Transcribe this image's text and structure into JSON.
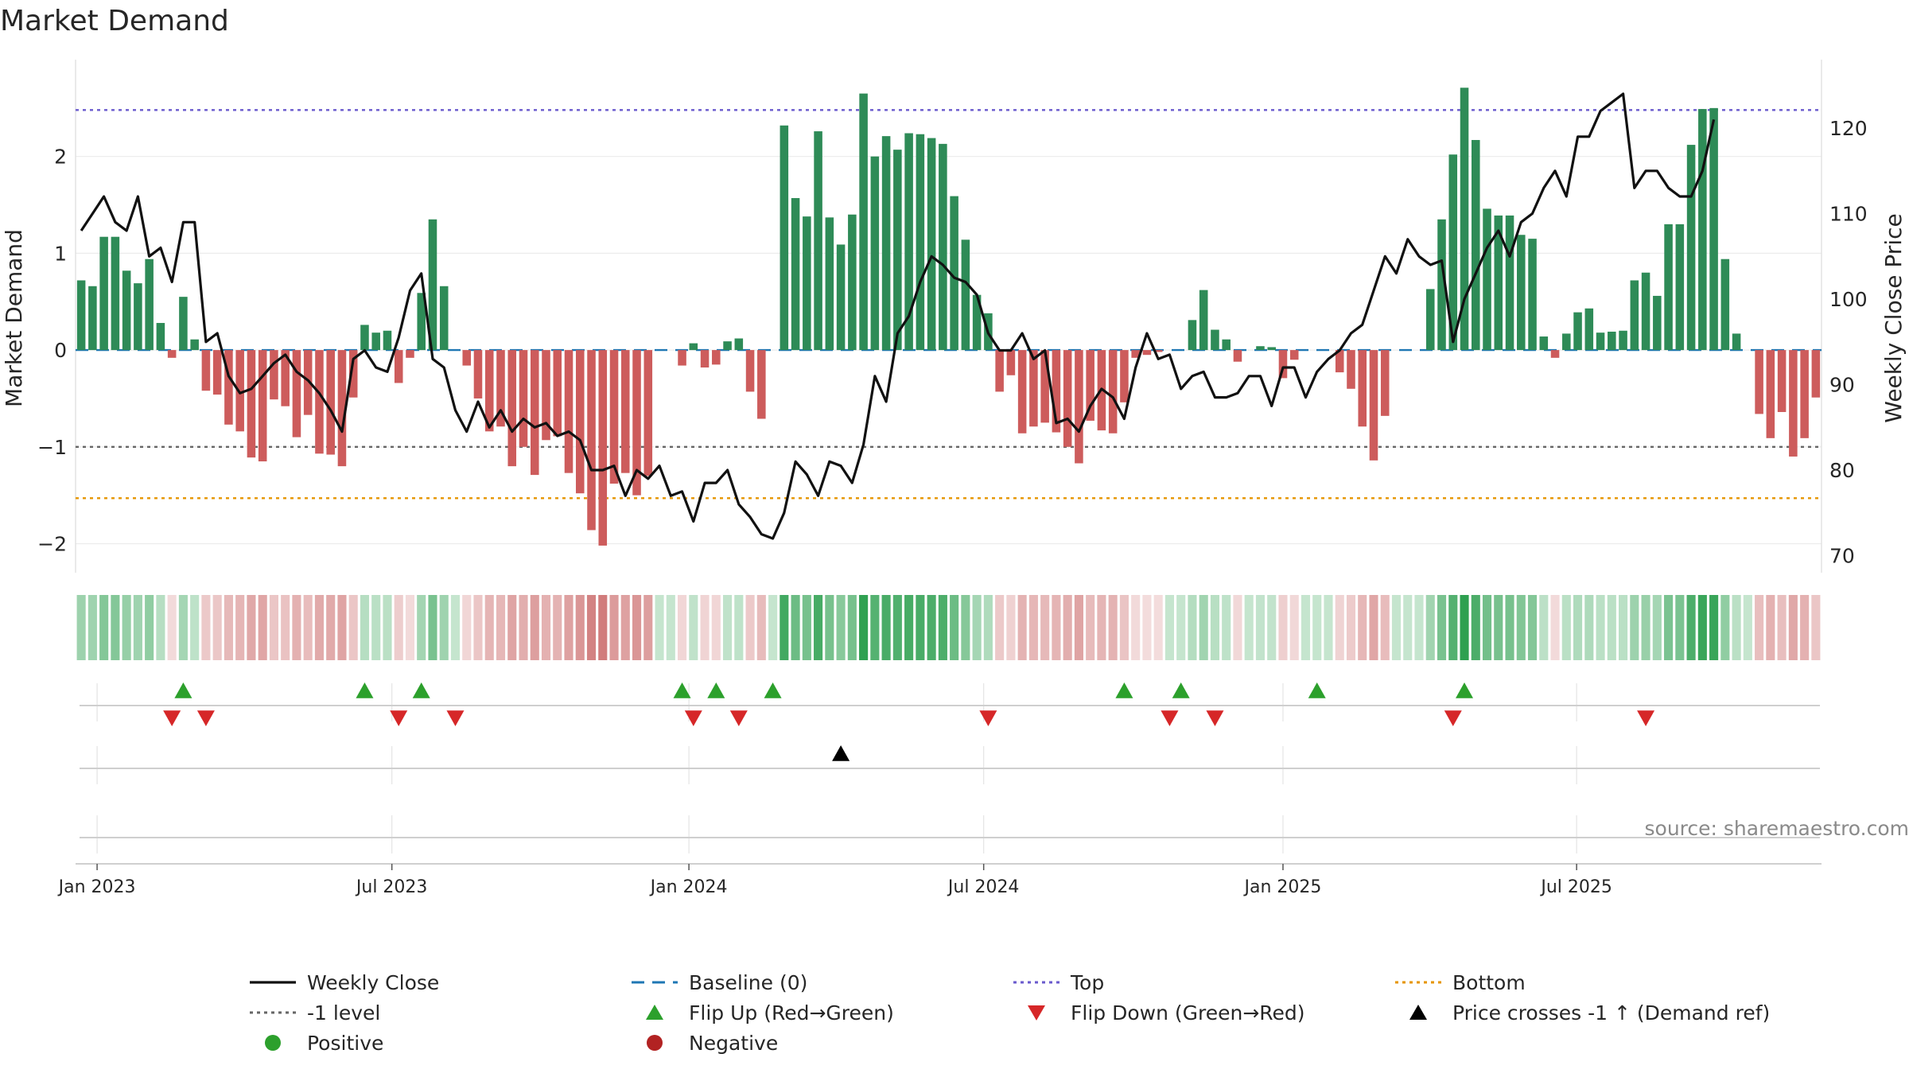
{
  "chart_data": {
    "type": "bar",
    "title": "Market Demand",
    "ylabel": "Market Demand",
    "y2label": "Weekly Close Price",
    "ylim": [
      -2.3,
      3.0
    ],
    "y2lim": [
      68,
      128
    ],
    "yticks": [
      -2,
      -1,
      0,
      1,
      2
    ],
    "y2ticks": [
      70,
      80,
      90,
      100,
      110,
      120
    ],
    "x_start": "2023-01-06",
    "x_end": "2025-09-26",
    "x_tick_labels": [
      "Jan 2023",
      "Jul 2023",
      "Jan 2024",
      "Jul 2024",
      "Jan 2025",
      "Jul 2025"
    ],
    "x_tick_indices": [
      1.4,
      27.4,
      53.6,
      79.6,
      106.0,
      131.9
    ],
    "reference_lines": {
      "top": 2.48,
      "minus_one": -1.0,
      "bottom": -1.53,
      "baseline": 0
    },
    "series": [
      {
        "name": "Market Demand",
        "values": [
          0.72,
          0.66,
          1.17,
          1.17,
          0.82,
          0.69,
          0.94,
          0.28,
          -0.08,
          0.55,
          0.11,
          -0.42,
          -0.46,
          -0.77,
          -0.84,
          -1.11,
          -1.15,
          -0.51,
          -0.58,
          -0.9,
          -0.67,
          -1.07,
          -1.08,
          -1.2,
          -0.49,
          0.26,
          0.18,
          0.2,
          -0.34,
          -0.08,
          0.59,
          1.35,
          0.66,
          0,
          -0.16,
          -0.5,
          -0.84,
          -0.79,
          -1.2,
          -1.0,
          -1.29,
          -0.93,
          -0.89,
          -1.27,
          -1.48,
          -1.86,
          -2.02,
          -1.38,
          -1.27,
          -1.5,
          -1.3,
          0,
          0,
          -0.16,
          0.07,
          -0.18,
          -0.15,
          0.09,
          0.12,
          -0.43,
          -0.71,
          0,
          2.32,
          1.57,
          1.38,
          2.26,
          1.37,
          1.09,
          1.4,
          2.65,
          2.0,
          2.21,
          2.07,
          2.24,
          2.23,
          2.19,
          2.13,
          1.59,
          1.14,
          0.57,
          0.38,
          -0.43,
          -0.26,
          -0.86,
          -0.79,
          -0.75,
          -0.85,
          -1.0,
          -1.17,
          -0.73,
          -0.83,
          -0.86,
          -0.54,
          -0.08,
          -0.05,
          -0.02,
          0,
          0,
          0.31,
          0.62,
          0.21,
          0.11,
          -0.12,
          0,
          0.04,
          0.03,
          -0.29,
          -0.1,
          0,
          0,
          0,
          -0.23,
          -0.4,
          -0.79,
          -1.14,
          -0.68,
          0,
          0,
          0,
          0.63,
          1.35,
          2.02,
          2.71,
          2.17,
          1.46,
          1.39,
          1.39,
          1.19,
          1.15,
          0.14,
          -0.08,
          0.17,
          0.39,
          0.43,
          0.18,
          0.19,
          0.2,
          0.72,
          0.8,
          0.56,
          1.3,
          1.3,
          2.12,
          2.49,
          2.5,
          0.94,
          0.17,
          0,
          -0.66,
          -0.91,
          -0.64,
          -1.1,
          -0.91,
          -0.49
        ]
      },
      {
        "name": "Weekly Close",
        "values": [
          108,
          110,
          112,
          109,
          108,
          112,
          105,
          106,
          102,
          109,
          109,
          95,
          96,
          91,
          89,
          89.5,
          91,
          92.5,
          93.5,
          91.5,
          90.5,
          89,
          87,
          84.5,
          93,
          94,
          92,
          91.5,
          95.5,
          101,
          103,
          93,
          92,
          87,
          84.5,
          88,
          85,
          87,
          84.5,
          86,
          85,
          85.5,
          84,
          84.5,
          83.5,
          80,
          80,
          80.5,
          77,
          80,
          79,
          80.5,
          77,
          77.5,
          74,
          78.5,
          78.5,
          80,
          76,
          74.5,
          72.5,
          72,
          75,
          81,
          79.5,
          77,
          81,
          80.5,
          78.5,
          83,
          91,
          88,
          96,
          98,
          102,
          105,
          104,
          102.5,
          102,
          100.5,
          96,
          94,
          94,
          96,
          93,
          94,
          85.5,
          86,
          84.5,
          87.5,
          89.5,
          88.5,
          86,
          92,
          96,
          93,
          93.5,
          89.5,
          91,
          91.5,
          88.5,
          88.5,
          89,
          91,
          91,
          87.5,
          92,
          92,
          88.5,
          91.5,
          93,
          94,
          96,
          97,
          101,
          105,
          103,
          107,
          105,
          104,
          104.5,
          95,
          100,
          103,
          106,
          108,
          105,
          109,
          110,
          113,
          115,
          112,
          119,
          119,
          122,
          123,
          124,
          113,
          115,
          115,
          113,
          112,
          112,
          115,
          121
        ]
      }
    ],
    "zone_strip": "Market Demand intensity strip (green positive, red negative)",
    "signals": {
      "flip_up_indices": [
        9,
        25,
        30,
        53,
        56,
        61,
        92,
        97,
        109,
        122
      ],
      "flip_down_indices": [
        8,
        11,
        28,
        33,
        54,
        58,
        80,
        96,
        100,
        121,
        138
      ],
      "price_cross_indices": [
        67
      ]
    },
    "annotation": "source: sharemaestro.com",
    "legend": [
      {
        "label": "Weekly Close",
        "symbol": "line-solid",
        "color": "#111111"
      },
      {
        "label": "Baseline (0)",
        "symbol": "line-dash",
        "color": "#1f77b4"
      },
      {
        "label": "Top",
        "symbol": "line-dot",
        "color": "#6a5acd"
      },
      {
        "label": "Bottom",
        "symbol": "line-dot",
        "color": "#e69500"
      },
      {
        "label": "-1 level",
        "symbol": "line-dot",
        "color": "#666666"
      },
      {
        "label": "Flip Up (Red→Green)",
        "symbol": "triangle-up",
        "color": "#2ca02c"
      },
      {
        "label": "Flip Down (Green→Red)",
        "symbol": "triangle-down",
        "color": "#d62728"
      },
      {
        "label": "Price crosses -1 ↑ (Demand ref)",
        "symbol": "triangle-up",
        "color": "#000000"
      },
      {
        "label": "Positive",
        "symbol": "dot",
        "color": "#2ca02c"
      },
      {
        "label": "Negative",
        "symbol": "dot",
        "color": "#b22222"
      }
    ],
    "colors": {
      "positive": "#2e8b57",
      "negative": "#cd5c5c",
      "flip_up": "#2ca02c",
      "flip_down": "#d62728"
    }
  }
}
